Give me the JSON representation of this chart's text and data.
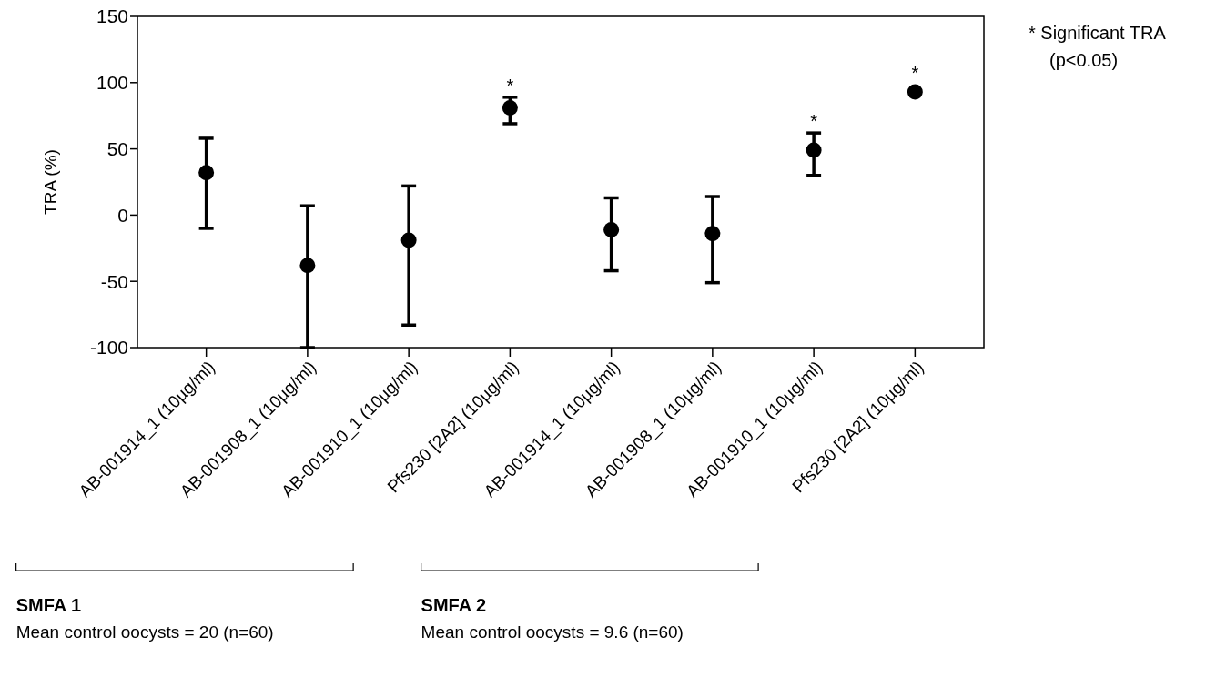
{
  "chart_data": {
    "type": "scatter",
    "ylabel": "TRA (%)",
    "categories": [
      "AB-001914_1 (10µg/ml)",
      "AB-001908_1 (10µg/ml)",
      "AB-001910_1 (10µg/ml)",
      "Pfs230 [2A2] (10µg/ml)",
      "AB-001914_1 (10µg/ml)",
      "AB-001908_1 (10µg/ml)",
      "AB-001910_1 (10µg/ml)",
      "Pfs230 [2A2] (10µg/ml)"
    ],
    "values": [
      32,
      -38,
      -19,
      81,
      -11,
      -14,
      49,
      93
    ],
    "errors": [
      [
        -10,
        58
      ],
      [
        -100,
        7
      ],
      [
        -83,
        22
      ],
      [
        69,
        89
      ],
      [
        -42,
        13
      ],
      [
        -51,
        14
      ],
      [
        30,
        62
      ],
      null
    ],
    "value_labels": [
      null,
      null,
      null,
      "*",
      null,
      null,
      "*",
      "*"
    ],
    "color": "#000000",
    "marker": "circle",
    "ylim": [
      -100,
      150
    ],
    "yticks": [
      -100,
      -50,
      0,
      50,
      100,
      150
    ],
    "grid": false,
    "annotations": [
      "SMFA 1",
      "Mean control oocysts = 20 (n=60)",
      "SMFA 2",
      "Mean control oocysts = 9.6 (n=60)",
      "* Significant TRA (p<0.05)"
    ]
  }
}
